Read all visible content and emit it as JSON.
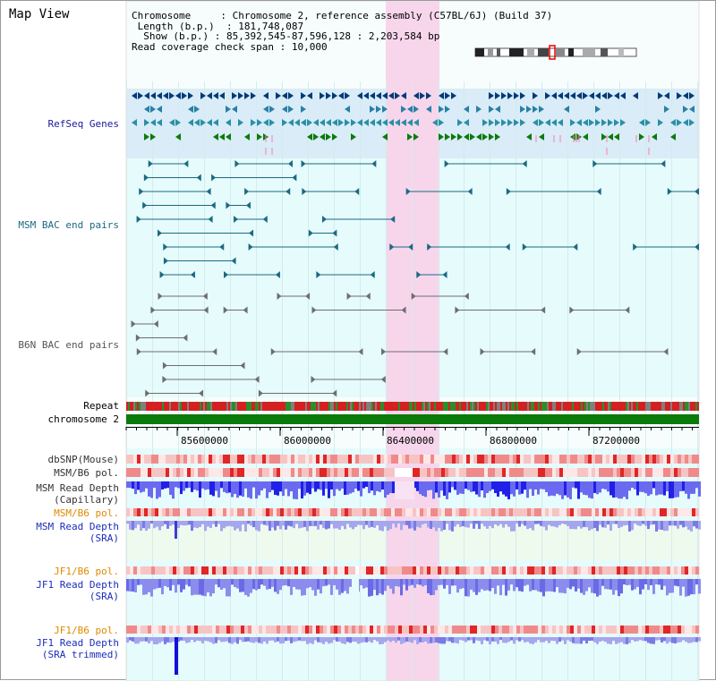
{
  "page_title": "Map View",
  "info": {
    "chromosome_key": "Chromosome",
    "chromosome_val": "Chromosome 2, reference assembly (C57BL/6J) (Build 37)",
    "length_key": "Length (b.p.)",
    "length_val": "181,748,087",
    "show_key": "Show (b.p.)",
    "show_val": "85,392,545-87,596,128 : 2,203,584 bp",
    "span_key": "Read coverage check span",
    "span_val": "10,000"
  },
  "tracks": {
    "refseq": "RefSeq Genes",
    "msm_bac": "MSM BAC end pairs",
    "b6n_bac": "B6N BAC end pairs",
    "repeat": "Repeat",
    "chrom": "chromosome 2",
    "dbsnp": "dbSNP(Mouse)",
    "msm_b6_pol": "MSM/B6 pol.",
    "msm_depth_cap_1": "MSM Read Depth",
    "msm_depth_cap_2": "(Capillary)",
    "msm_b6_pol_sra": "MSM/B6 pol.",
    "msm_depth_sra_1": "MSM Read Depth",
    "msm_depth_sra_2": "(SRA)",
    "jf1_pol_1": "JF1/B6 pol.",
    "jf1_depth_1": "JF1 Read Depth",
    "jf1_depth_1b": "(SRA)",
    "jf1_pol_2": "JF1/B6 pol.",
    "jf1_depth_2": "JF1 Read Depth",
    "jf1_depth_2b": "(SRA trimmed)"
  },
  "axis_ticks": [
    "85600000",
    "86000000",
    "86400000",
    "86800000",
    "87200000"
  ],
  "colors": {
    "highlight": "#f7d6ec",
    "refseq_bg": "#d9ecf7",
    "panel_bg": "#e6fbfb",
    "msm_track": "#1b6a83",
    "b6n_track": "#6e6e6e",
    "depth_blue": "#3a3ae6",
    "depth_light": "#9c9cee",
    "pol_red": "#e84040",
    "chrom_green": "#0a7a0a"
  }
}
